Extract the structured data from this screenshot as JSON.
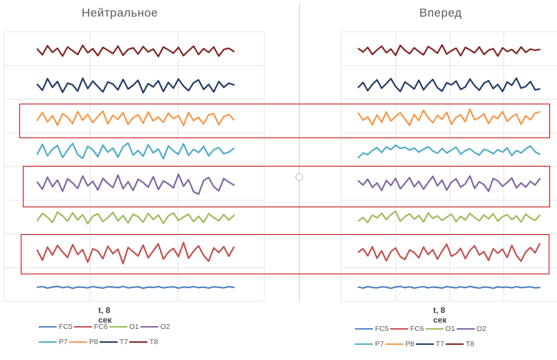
{
  "channel_order_top_to_bottom": [
    "T8",
    "T7",
    "P8",
    "P7",
    "O2",
    "O1",
    "FC6",
    "FC5"
  ],
  "colors": {
    "FC5": "#4f81bd",
    "FC6": "#c0504d",
    "O1": "#9bbb59",
    "O2": "#8064a2",
    "P7": "#4bacc6",
    "P8": "#f79646",
    "T7": "#1f3864",
    "T8": "#7f1f1f",
    "highlight": "#c00000"
  },
  "legend_rows": [
    [
      "FC5",
      "FC6",
      "O1",
      "O2"
    ],
    [
      "P7",
      "P8",
      "T7",
      "T8"
    ]
  ],
  "highlighted_channels": [
    "P8",
    "O2",
    "FC6"
  ],
  "chart_data": [
    {
      "type": "line",
      "title": "Нейтральное",
      "xlabel": "t, 8 сек",
      "ylabel": "",
      "grid": true,
      "legend": "bottom",
      "series": [
        {
          "name": "FC5",
          "values": [
            0.1,
            0.4,
            -0.3,
            0.2,
            0.5,
            -0.1,
            0.3,
            -0.4,
            0.2,
            0.1,
            -0.2,
            0.4,
            0.0,
            -0.3,
            0.3,
            0.2,
            -0.1,
            0.5,
            -0.2,
            0.1,
            0.3,
            -0.4,
            0.2,
            0.0,
            0.4,
            -0.2,
            0.1,
            0.3,
            -0.3,
            0.2,
            0.0,
            0.4,
            -0.1,
            0.2,
            -0.3,
            0.3,
            0.1,
            -0.2,
            0.4,
            0.0
          ]
        },
        {
          "name": "FC6",
          "values": [
            1.2,
            -3.5,
            2.8,
            -1.0,
            3.6,
            0.5,
            -2.2,
            4.0,
            -0.8,
            1.6,
            -4.5,
            2.0,
            0.9,
            -2.8,
            3.2,
            -0.4,
            1.8,
            -5.2,
            2.6,
            0.6,
            -1.5,
            3.8,
            -2.4,
            1.0,
            4.4,
            -3.0,
            0.3,
            2.2,
            -1.8,
            5.0,
            -2.6,
            0.8,
            3.4,
            -1.2,
            -4.0,
            2.4,
            0.2,
            3.0,
            -1.6,
            2.8
          ]
        },
        {
          "name": "O1",
          "values": [
            -1.0,
            2.4,
            0.6,
            -2.0,
            3.0,
            1.2,
            -1.4,
            2.6,
            -0.8,
            1.8,
            -2.6,
            1.0,
            2.2,
            -1.6,
            0.4,
            2.8,
            -1.2,
            1.4,
            -2.2,
            2.0,
            0.8,
            -1.8,
            2.4,
            -0.6,
            1.6,
            -2.4,
            1.2,
            2.6,
            -1.0,
            0.6,
            2.0,
            -1.6,
            1.0,
            -2.0,
            2.2,
            0.4,
            -1.2,
            1.8,
            -0.8,
            1.4
          ]
        },
        {
          "name": "O2",
          "values": [
            0.8,
            -2.6,
            3.2,
            -1.4,
            1.8,
            -3.6,
            2.4,
            0.4,
            -2.2,
            3.8,
            -1.0,
            1.2,
            -3.0,
            2.6,
            0.2,
            -1.8,
            4.2,
            -2.4,
            1.0,
            -3.2,
            2.2,
            0.6,
            -1.6,
            3.4,
            -2.8,
            1.4,
            0.0,
            -2.0,
            4.6,
            -1.2,
            2.0,
            -3.8,
            -5.0,
            1.6,
            3.0,
            -1.4,
            -3.4,
            2.6,
            0.8,
            -0.6
          ]
        },
        {
          "name": "P7",
          "values": [
            -1.4,
            3.4,
            -2.2,
            1.0,
            2.8,
            -3.0,
            0.6,
            3.8,
            -1.6,
            -3.4,
            2.4,
            0.8,
            -2.6,
            3.0,
            -0.4,
            1.6,
            -2.8,
            2.2,
            4.0,
            -1.8,
            0.4,
            -2.4,
            3.2,
            -0.8,
            1.2,
            -3.6,
            2.6,
            0.2,
            -1.4,
            3.6,
            -2.0,
            1.0,
            -0.6,
            2.4,
            -2.2,
            0.8,
            1.8,
            -1.2,
            -0.4,
            1.4
          ]
        },
        {
          "name": "P8",
          "values": [
            -1.0,
            2.8,
            -1.8,
            1.2,
            -3.4,
            2.2,
            0.4,
            -2.6,
            3.2,
            -1.0,
            1.8,
            -2.2,
            0.8,
            3.4,
            -2.8,
            1.4,
            -0.6,
            2.6,
            -3.0,
            0.2,
            1.6,
            -2.4,
            3.0,
            -1.4,
            0.6,
            -2.0,
            2.4,
            -0.2,
            1.2,
            -3.6,
            2.8,
            -1.2,
            0.4,
            -2.8,
            1.6,
            2.2,
            -3.2,
            0.8,
            1.8,
            -0.8
          ]
        },
        {
          "name": "T7",
          "values": [
            0.6,
            -2.2,
            3.4,
            -0.8,
            2.0,
            -3.2,
            1.2,
            0.4,
            -2.6,
            3.6,
            -1.4,
            2.2,
            -0.4,
            -3.0,
            1.8,
            0.8,
            -2.0,
            3.0,
            -1.6,
            0.2,
            2.6,
            -3.4,
            1.0,
            -0.6,
            2.4,
            -2.8,
            1.6,
            -1.2,
            3.2,
            -0.2,
            -2.4,
            1.4,
            2.8,
            -1.8,
            0.6,
            -3.0,
            2.0,
            -0.8,
            1.2,
            0.4
          ]
        },
        {
          "name": "T8",
          "values": [
            1.0,
            -1.8,
            2.6,
            -0.6,
            1.4,
            -2.4,
            2.0,
            0.2,
            -1.6,
            2.8,
            -0.8,
            1.2,
            -2.2,
            1.8,
            0.4,
            -1.2,
            2.4,
            -2.0,
            0.8,
            1.6,
            -1.4,
            2.2,
            -0.4,
            1.0,
            -2.6,
            2.0,
            0.6,
            -1.0,
            1.8,
            -2.2,
            0.2,
            2.4,
            -1.6,
            1.2,
            -0.6,
            2.0,
            -2.4,
            0.8,
            1.4,
            -0.2
          ]
        }
      ]
    },
    {
      "type": "line",
      "title": "Вперед",
      "xlabel": "t, 8 сек",
      "ylabel": "",
      "grid": true,
      "legend": "bottom",
      "series": [
        {
          "name": "FC5",
          "values": [
            0.2,
            -0.3,
            0.4,
            0.0,
            -0.2,
            0.3,
            0.1,
            -0.4,
            0.2,
            0.5,
            -0.1,
            0.3,
            -0.3,
            0.1,
            0.4,
            -0.2,
            0.2,
            0.0,
            -0.3,
            0.4,
            0.1,
            -0.2,
            0.3,
            -0.1,
            0.5,
            0.0,
            -0.3,
            0.2,
            0.1,
            -0.4,
            0.3,
            0.0,
            0.2,
            -0.2,
            0.4,
            -0.1,
            0.1,
            0.3,
            -0.2,
            0.0
          ]
        },
        {
          "name": "FC6",
          "values": [
            0.4,
            2.0,
            -1.4,
            3.0,
            -2.6,
            1.0,
            -3.8,
            0.6,
            2.4,
            -1.8,
            -3.2,
            1.4,
            0.2,
            -2.4,
            2.8,
            -0.8,
            1.6,
            -3.0,
            0.8,
            4.2,
            -1.6,
            -0.4,
            2.2,
            -2.8,
            1.2,
            3.4,
            -1.0,
            0.6,
            -3.6,
            2.0,
            -0.2,
            1.8,
            -2.2,
            3.6,
            -1.2,
            -4.0,
            0.4,
            2.6,
            0.0,
            4.4
          ]
        },
        {
          "name": "O1",
          "values": [
            -1.2,
            0.4,
            -2.0,
            1.6,
            0.2,
            2.4,
            -0.6,
            1.8,
            3.4,
            -1.4,
            0.8,
            2.2,
            -0.4,
            1.4,
            -1.8,
            2.6,
            0.0,
            1.2,
            -1.0,
            0.6,
            2.0,
            -1.6,
            1.0,
            -0.8,
            2.4,
            0.4,
            -1.2,
            1.6,
            -0.2,
            2.2,
            -1.4,
            0.8,
            1.8,
            -0.6,
            1.2,
            -1.8,
            2.0,
            0.2,
            -1.0,
            1.4
          ]
        },
        {
          "name": "O2",
          "values": [
            1.4,
            -0.6,
            2.2,
            -1.8,
            0.4,
            -3.2,
            1.6,
            -0.8,
            2.6,
            -2.4,
            0.2,
            3.0,
            -1.4,
            1.2,
            -2.6,
            0.6,
            3.6,
            -1.0,
            1.8,
            -3.0,
            0.8,
            2.4,
            -1.6,
            0.0,
            3.8,
            -2.2,
            1.0,
            -0.4,
            -3.6,
            2.6,
            1.4,
            -1.2,
            0.6,
            2.8,
            -2.0,
            0.4,
            -1.6,
            1.2,
            -0.6,
            2.4
          ]
        },
        {
          "name": "P7",
          "values": [
            -3.0,
            -0.8,
            -1.6,
            0.4,
            1.8,
            -0.6,
            2.2,
            0.8,
            3.0,
            1.4,
            2.0,
            0.6,
            1.6,
            -0.4,
            1.0,
            2.2,
            0.2,
            -1.0,
            1.4,
            -0.8,
            0.6,
            2.0,
            -1.4,
            0.4,
            1.2,
            -0.6,
            -1.8,
            1.0,
            0.2,
            -1.2,
            0.8,
            -0.4,
            1.6,
            -2.0,
            0.4,
            -0.8,
            1.2,
            2.6,
            -0.2,
            -1.4
          ]
        },
        {
          "name": "P8",
          "values": [
            2.4,
            -1.0,
            0.6,
            -3.2,
            1.6,
            -2.0,
            3.0,
            -1.4,
            0.8,
            2.6,
            -0.4,
            -3.4,
            1.8,
            -1.2,
            3.8,
            0.2,
            -2.2,
            1.4,
            -0.6,
            2.8,
            -3.0,
            0.4,
            1.6,
            -1.8,
            4.4,
            -0.8,
            0.2,
            2.2,
            -2.6,
            1.0,
            -0.2,
            3.2,
            -1.6,
            0.6,
            2.0,
            -3.0,
            1.2,
            -0.8,
            2.4,
            3.0
          ]
        },
        {
          "name": "T7",
          "values": [
            -0.8,
            1.6,
            -2.4,
            0.6,
            2.8,
            -1.2,
            1.0,
            3.4,
            -0.4,
            -2.8,
            1.8,
            0.2,
            -1.6,
            2.6,
            -2.0,
            0.8,
            3.0,
            -1.0,
            -2.6,
            1.4,
            0.4,
            2.2,
            -1.8,
            -0.6,
            3.2,
            0.0,
            -2.2,
            1.2,
            2.4,
            -1.4,
            0.6,
            -2.8,
            1.8,
            0.2,
            3.6,
            -1.2,
            -0.4,
            2.0,
            -2.0,
            -1.6
          ]
        },
        {
          "name": "T8",
          "values": [
            1.2,
            -0.4,
            1.8,
            -1.6,
            0.6,
            2.4,
            -0.8,
            1.0,
            -2.0,
            2.8,
            0.4,
            -1.2,
            1.6,
            -0.2,
            -1.8,
            2.2,
            0.8,
            -1.0,
            3.0,
            -1.4,
            0.2,
            1.4,
            -2.2,
            1.8,
            0.6,
            -0.8,
            2.0,
            -1.6,
            0.4,
            1.2,
            -2.4,
            1.6,
            -0.2,
            0.8,
            -1.2,
            2.0,
            -0.6,
            1.0,
            0.4,
            0.8
          ]
        }
      ]
    }
  ]
}
